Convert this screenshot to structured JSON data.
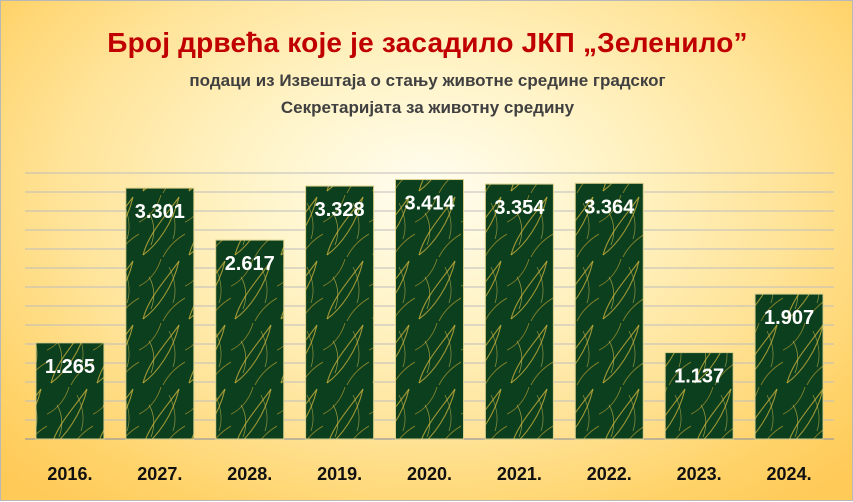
{
  "chart_data": {
    "type": "bar",
    "title": "Број дрвећа које је засадило ЈКП „Зеленило”",
    "subtitle_line1": "подаци из Извештаја о стању животне средине градског",
    "subtitle_line2": "Секретаријата за животну средину",
    "categories": [
      "2016.",
      "2027.",
      "2028.",
      "2019.",
      "2020.",
      "2021.",
      "2022.",
      "2023.",
      "2024."
    ],
    "values": [
      1265,
      3301,
      2617,
      3328,
      3414,
      3354,
      3364,
      1137,
      1907
    ],
    "value_labels": [
      "1.265",
      "3.301",
      "2.617",
      "3.328",
      "3.414",
      "3.354",
      "3.364",
      "1.137",
      "1.907"
    ],
    "xlabel": "",
    "ylabel": "",
    "ylim": [
      0,
      3500
    ],
    "grid": true,
    "legend": "none",
    "colors": {
      "bar_fill": "#0c3f1d",
      "bar_pattern": "#b9a73a",
      "bar_edge": "#d8cf8a",
      "title": "#c00000",
      "subtitle": "#404040",
      "grid": "#bdbdbd",
      "data_label": "#ffffff"
    }
  }
}
